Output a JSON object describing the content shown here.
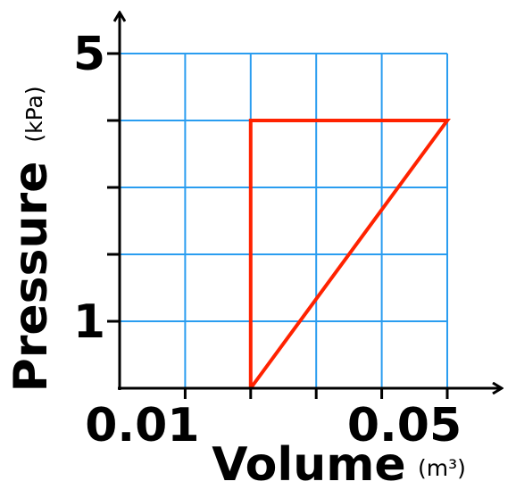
{
  "chart_data": {
    "type": "line",
    "x_label": "Volume",
    "x_unit": "(m³)",
    "y_label": "Pressure",
    "y_unit": "(kPa)",
    "x": [
      0.02,
      0.02,
      0.05,
      0.02
    ],
    "series": [
      {
        "color": "#ff2200",
        "values": [
          0,
          4,
          4,
          0
        ]
      }
    ],
    "xlim": [
      0,
      0.05
    ],
    "ylim": [
      0,
      5
    ],
    "xticks": [
      0.01,
      0.05
    ],
    "xminor": [
      0.02,
      0.03,
      0.04
    ],
    "yticks": [
      1,
      5
    ],
    "yminor": [
      2,
      3,
      4
    ],
    "grid": true,
    "grid_color": "#2a9df0"
  }
}
